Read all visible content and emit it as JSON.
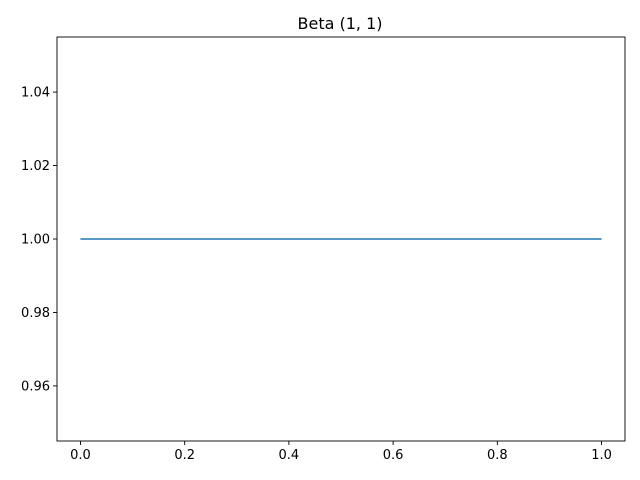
{
  "chart_data": {
    "type": "line",
    "title": "Beta (1, 1)",
    "xlabel": "",
    "ylabel": "",
    "xlim": [
      -0.045,
      1.045
    ],
    "ylim": [
      0.945,
      1.055
    ],
    "xticks": [
      0.0,
      0.2,
      0.4,
      0.6,
      0.8,
      1.0
    ],
    "xtick_labels": [
      "0.0",
      "0.2",
      "0.4",
      "0.6",
      "0.8",
      "1.0"
    ],
    "yticks": [
      0.96,
      0.98,
      1.0,
      1.02,
      1.04
    ],
    "ytick_labels": [
      "0.96",
      "0.98",
      "1.00",
      "1.02",
      "1.04"
    ],
    "grid": false,
    "series": [
      {
        "x": [
          0.0,
          1.0
        ],
        "y": [
          1.0,
          1.0
        ],
        "color": "#1f77b4"
      }
    ]
  }
}
